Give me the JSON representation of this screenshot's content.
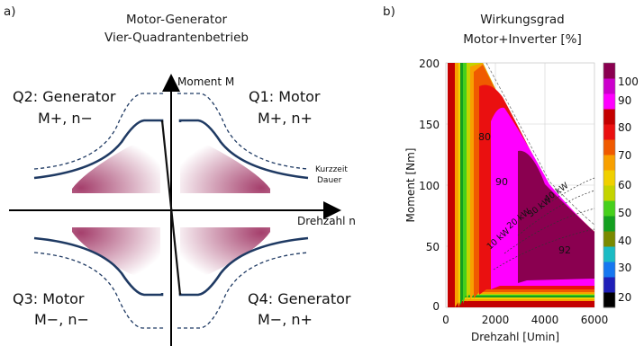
{
  "panel_a": {
    "letter": "a)",
    "title_line1": "Motor-Generator",
    "title_line2": "Vier-Quadrantenbetrieb",
    "axis_y": "Moment M",
    "axis_x": "Drehzahl n",
    "q1": {
      "name": "Q1: Motor",
      "signs": "M+, n+"
    },
    "q2": {
      "name": "Q2: Generator",
      "signs": "M+, n−"
    },
    "q3": {
      "name": "Q3: Motor",
      "signs": "M−, n−"
    },
    "q4": {
      "name": "Q4: Generator",
      "signs": "M−, n+"
    },
    "legend_short": "Kurzzeit",
    "legend_long": "Dauer",
    "colors": {
      "curve": "#1f3a63",
      "region": "#9b2a5c"
    }
  },
  "panel_b": {
    "letter": "b)",
    "title_line1": "Wirkungsgrad",
    "title_line2": "Motor+Inverter [%]",
    "chart_data": {
      "type": "heatmap",
      "title": "Wirkungsgrad Motor+Inverter [%]",
      "xlabel": "Drehzahl [Umin]",
      "ylabel": "Moment [Nm]",
      "xlim": [
        0,
        6000
      ],
      "ylim": [
        0,
        200
      ],
      "x_ticks": [
        "0",
        "2000",
        "4000",
        "6000"
      ],
      "y_ticks": [
        "0",
        "50",
        "100",
        "150",
        "200"
      ],
      "colorbar": {
        "ticks": [
          "20",
          "30",
          "40",
          "50",
          "60",
          "70",
          "80",
          "90",
          "100"
        ],
        "colors": [
          "#000000",
          "#1f1fb8",
          "#1677f0",
          "#1bbbc4",
          "#7a8a00",
          "#14a020",
          "#46d01c",
          "#c4d400",
          "#f0d000",
          "#f8a000",
          "#f05a00",
          "#ea1010",
          "#c40000",
          "#ff00ff",
          "#cc00cc",
          "#8a0050"
        ],
        "vmin": 20,
        "vmax": 100
      },
      "contour_labels": [
        "80",
        "90",
        "92"
      ],
      "power_lines": [
        "10 kW",
        "20 kW",
        "30 kW",
        "40 kW"
      ],
      "grid": true
    }
  }
}
